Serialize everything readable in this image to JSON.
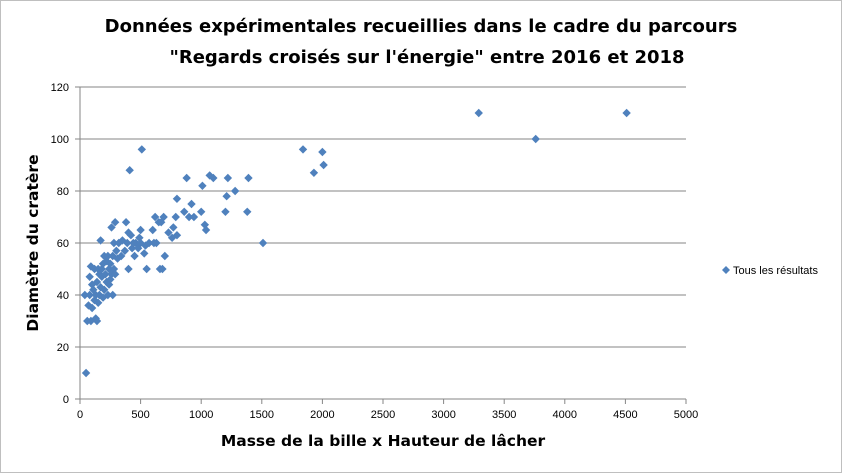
{
  "chart_data": {
    "type": "scatter",
    "title_lines": [
      "Données expérimentales recueillies dans le cadre du parcours",
      "\"Regards croisés sur l'énergie\" entre 2016 et 2018"
    ],
    "xlabel": "Masse de la bille x Hauteur de lâcher",
    "ylabel": "Diamètre du cratère",
    "xlim": [
      0,
      5000
    ],
    "ylim": [
      0,
      120
    ],
    "xticks": [
      0,
      500,
      1000,
      1500,
      2000,
      2500,
      3000,
      3500,
      4000,
      4500,
      5000
    ],
    "yticks": [
      0,
      20,
      40,
      60,
      80,
      100,
      120
    ],
    "grid": "horizontal",
    "legend_position": "right",
    "marker": "diamond",
    "color": "#4f81bd",
    "series": [
      {
        "name": "Tous les résultats",
        "points": [
          [
            50,
            10
          ],
          [
            40,
            40
          ],
          [
            60,
            30
          ],
          [
            70,
            36
          ],
          [
            80,
            40
          ],
          [
            80,
            47
          ],
          [
            90,
            51
          ],
          [
            90,
            30
          ],
          [
            100,
            35
          ],
          [
            100,
            44
          ],
          [
            110,
            42
          ],
          [
            120,
            50
          ],
          [
            120,
            38
          ],
          [
            130,
            31
          ],
          [
            130,
            40
          ],
          [
            140,
            30
          ],
          [
            140,
            45
          ],
          [
            150,
            37
          ],
          [
            150,
            50
          ],
          [
            160,
            48
          ],
          [
            160,
            40
          ],
          [
            170,
            61
          ],
          [
            170,
            43
          ],
          [
            180,
            47
          ],
          [
            180,
            50
          ],
          [
            190,
            52
          ],
          [
            190,
            39
          ],
          [
            200,
            55
          ],
          [
            200,
            42
          ],
          [
            210,
            48
          ],
          [
            220,
            53
          ],
          [
            220,
            45
          ],
          [
            230,
            55
          ],
          [
            230,
            40
          ],
          [
            240,
            50
          ],
          [
            240,
            44
          ],
          [
            250,
            52
          ],
          [
            250,
            46
          ],
          [
            260,
            48
          ],
          [
            260,
            66
          ],
          [
            270,
            40
          ],
          [
            270,
            55
          ],
          [
            280,
            60
          ],
          [
            280,
            50
          ],
          [
            290,
            68
          ],
          [
            290,
            48
          ],
          [
            300,
            57
          ],
          [
            310,
            54
          ],
          [
            320,
            60
          ],
          [
            340,
            55
          ],
          [
            350,
            61
          ],
          [
            370,
            57
          ],
          [
            380,
            68
          ],
          [
            390,
            60
          ],
          [
            400,
            64
          ],
          [
            400,
            50
          ],
          [
            410,
            88
          ],
          [
            420,
            63
          ],
          [
            430,
            58
          ],
          [
            440,
            60
          ],
          [
            450,
            55
          ],
          [
            460,
            60
          ],
          [
            480,
            58
          ],
          [
            490,
            62
          ],
          [
            500,
            60
          ],
          [
            500,
            65
          ],
          [
            510,
            96
          ],
          [
            530,
            56
          ],
          [
            540,
            59
          ],
          [
            550,
            50
          ],
          [
            570,
            60
          ],
          [
            600,
            65
          ],
          [
            610,
            60
          ],
          [
            620,
            70
          ],
          [
            630,
            60
          ],
          [
            650,
            68
          ],
          [
            660,
            50
          ],
          [
            670,
            68
          ],
          [
            680,
            50
          ],
          [
            690,
            70
          ],
          [
            700,
            55
          ],
          [
            730,
            64
          ],
          [
            760,
            62
          ],
          [
            770,
            66
          ],
          [
            790,
            70
          ],
          [
            800,
            77
          ],
          [
            800,
            63
          ],
          [
            860,
            72
          ],
          [
            880,
            85
          ],
          [
            900,
            70
          ],
          [
            920,
            75
          ],
          [
            940,
            70
          ],
          [
            1000,
            72
          ],
          [
            1010,
            82
          ],
          [
            1030,
            67
          ],
          [
            1040,
            65
          ],
          [
            1070,
            86
          ],
          [
            1100,
            85
          ],
          [
            1200,
            72
          ],
          [
            1210,
            78
          ],
          [
            1220,
            85
          ],
          [
            1280,
            80
          ],
          [
            1380,
            72
          ],
          [
            1390,
            85
          ],
          [
            1510,
            60
          ],
          [
            1840,
            96
          ],
          [
            1930,
            87
          ],
          [
            2000,
            95
          ],
          [
            2010,
            90
          ],
          [
            3290,
            110
          ],
          [
            3760,
            100
          ],
          [
            4510,
            110
          ]
        ]
      }
    ]
  }
}
